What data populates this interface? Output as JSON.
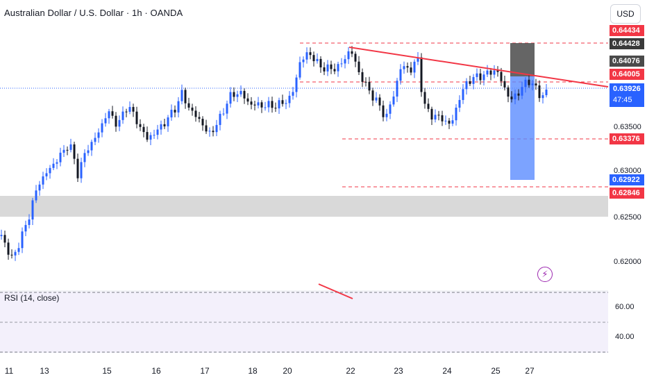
{
  "header": {
    "symbol_title": "Australian Dollar / U.S. Dollar · 1h · OANDA",
    "currency": "USD"
  },
  "price_axis": {
    "labels": [
      "0.63500",
      "0.63000",
      "0.62500",
      "0.62000"
    ]
  },
  "price_tags": {
    "top": "0.64434",
    "upper_box": "0.64428",
    "mid_gray": "0.64076",
    "resistance": "0.64005",
    "current_price": "0.63926",
    "countdown": "47:45",
    "support": "0.63376",
    "target_blue": "0.62922",
    "lower": "0.62846"
  },
  "rsi": {
    "label": "RSI (14, close)",
    "levels": [
      "60.00",
      "40.00"
    ]
  },
  "time_axis": {
    "labels": [
      "11",
      "13",
      "15",
      "16",
      "17",
      "18",
      "20",
      "22",
      "23",
      "24",
      "25",
      "27"
    ]
  },
  "icons": {
    "alert": "lightning-icon"
  },
  "colors": {
    "bull": "#2962ff",
    "bear": "#131722",
    "trendline": "#f23645",
    "level_dash": "#f23645",
    "current_line": "#2962ff",
    "zone_gray": "#d9d9d9",
    "rsi_bg": "#f3f0fb"
  }
}
